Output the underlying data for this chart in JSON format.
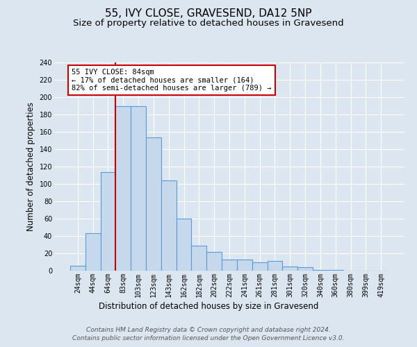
{
  "title": "55, IVY CLOSE, GRAVESEND, DA12 5NP",
  "subtitle": "Size of property relative to detached houses in Gravesend",
  "xlabel": "Distribution of detached houses by size in Gravesend",
  "ylabel": "Number of detached properties",
  "bin_labels": [
    "24sqm",
    "44sqm",
    "64sqm",
    "83sqm",
    "103sqm",
    "123sqm",
    "143sqm",
    "162sqm",
    "182sqm",
    "202sqm",
    "222sqm",
    "241sqm",
    "261sqm",
    "281sqm",
    "301sqm",
    "320sqm",
    "340sqm",
    "360sqm",
    "380sqm",
    "399sqm",
    "419sqm"
  ],
  "bar_values": [
    6,
    43,
    114,
    190,
    190,
    154,
    104,
    60,
    29,
    22,
    13,
    13,
    10,
    11,
    5,
    4,
    1,
    1,
    0,
    0,
    0
  ],
  "bar_color": "#c5d8ec",
  "bar_edge_color": "#5b9bd5",
  "bar_edge_width": 0.8,
  "vline_color": "#cc0000",
  "vline_linewidth": 1.5,
  "vline_x_index": 3,
  "annotation_text": "55 IVY CLOSE: 84sqm\n← 17% of detached houses are smaller (164)\n82% of semi-detached houses are larger (789) →",
  "annotation_box_color": "#ffffff",
  "annotation_box_edge_color": "#cc0000",
  "ylim": [
    0,
    240
  ],
  "yticks": [
    0,
    20,
    40,
    60,
    80,
    100,
    120,
    140,
    160,
    180,
    200,
    220,
    240
  ],
  "footer_line1": "Contains HM Land Registry data © Crown copyright and database right 2024.",
  "footer_line2": "Contains public sector information licensed under the Open Government Licence v3.0.",
  "background_color": "#dce6f0",
  "plot_background_color": "#dce6f0",
  "title_fontsize": 11,
  "subtitle_fontsize": 9.5,
  "axis_label_fontsize": 8.5,
  "tick_fontsize": 7,
  "footer_fontsize": 6.5,
  "grid_color": "#ffffff"
}
